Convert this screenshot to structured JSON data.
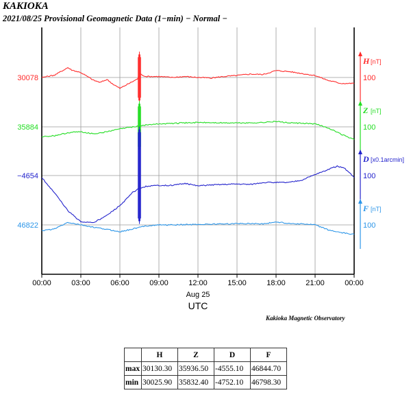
{
  "header": {
    "station": "KAKIOKA",
    "subtitle": "2021/08/25  Provisional Geomagnetic Data (1−min)  − Normal −"
  },
  "footer": {
    "observatory": "Kakioka Magnetic Observatory"
  },
  "colors": {
    "H": "#ff2a2a",
    "Z": "#22dd22",
    "D": "#2222cc",
    "F": "#2b95e8"
  },
  "chart_data": {
    "type": "line",
    "x_ticks": [
      "00:00",
      "03:00",
      "06:00",
      "09:00",
      "12:00",
      "15:00",
      "18:00",
      "21:00",
      "00:00"
    ],
    "x_date_label": "Aug 25",
    "xlabel": "UTC",
    "x_range_hours": [
      0,
      24
    ],
    "grid": true,
    "series": [
      {
        "name": "H",
        "unit": "[nT]",
        "base_label": "30078",
        "scale_label": "100",
        "scale_per_division": 100,
        "points": [
          [
            0,
            30078
          ],
          [
            1,
            30083
          ],
          [
            2,
            30098
          ],
          [
            2.3,
            30093
          ],
          [
            3,
            30088
          ],
          [
            3.5,
            30080
          ],
          [
            4,
            30072
          ],
          [
            4.5,
            30068
          ],
          [
            5,
            30074
          ],
          [
            5.5,
            30064
          ],
          [
            6,
            30056
          ],
          [
            6.5,
            30063
          ],
          [
            7,
            30070
          ],
          [
            7.35,
            30075
          ],
          [
            7.55,
            30085
          ],
          [
            8,
            30080
          ],
          [
            9,
            30080
          ],
          [
            10,
            30078
          ],
          [
            11,
            30080
          ],
          [
            12,
            30078
          ],
          [
            13,
            30077
          ],
          [
            14,
            30080
          ],
          [
            15,
            30082
          ],
          [
            16,
            30085
          ],
          [
            17,
            30084
          ],
          [
            18,
            30092
          ],
          [
            19,
            30090
          ],
          [
            20,
            30086
          ],
          [
            21,
            30082
          ],
          [
            22,
            30072
          ],
          [
            23,
            30066
          ],
          [
            24,
            30066
          ]
        ],
        "spike": {
          "t": 7.5,
          "low": 30025.9,
          "high": 30130.3
        }
      },
      {
        "name": "Z",
        "unit": "[nT]",
        "base_label": "35884",
        "scale_label": "100",
        "scale_per_division": 100,
        "points": [
          [
            0,
            35864
          ],
          [
            1,
            35866
          ],
          [
            2,
            35872
          ],
          [
            3,
            35874
          ],
          [
            4,
            35870
          ],
          [
            5,
            35874
          ],
          [
            6,
            35880
          ],
          [
            7,
            35884
          ],
          [
            8,
            35888
          ],
          [
            9,
            35890
          ],
          [
            10,
            35891
          ],
          [
            12,
            35893
          ],
          [
            14,
            35892
          ],
          [
            16,
            35892
          ],
          [
            17,
            35893
          ],
          [
            18,
            35895
          ],
          [
            19,
            35892
          ],
          [
            20,
            35891
          ],
          [
            21,
            35890
          ],
          [
            22,
            35882
          ],
          [
            23,
            35869
          ],
          [
            24,
            35858
          ]
        ],
        "spike": {
          "t": 7.5,
          "low": 35832.4,
          "high": 35936.5
        }
      },
      {
        "name": "D",
        "unit": "[x0.1arcmin]",
        "base_label": "−4654",
        "scale_label": "100",
        "scale_per_division": 100,
        "points": [
          [
            0,
            -4658
          ],
          [
            1,
            -4690
          ],
          [
            2,
            -4725
          ],
          [
            3,
            -4748
          ],
          [
            4,
            -4749
          ],
          [
            5,
            -4735
          ],
          [
            6,
            -4715
          ],
          [
            6.5,
            -4702
          ],
          [
            7,
            -4688
          ],
          [
            7.5,
            -4680
          ],
          [
            8,
            -4676
          ],
          [
            9,
            -4674
          ],
          [
            10,
            -4674
          ],
          [
            11,
            -4670
          ],
          [
            12,
            -4675
          ],
          [
            13,
            -4673
          ],
          [
            14,
            -4672
          ],
          [
            15,
            -4671
          ],
          [
            16,
            -4672
          ],
          [
            17,
            -4668
          ],
          [
            18,
            -4668
          ],
          [
            19,
            -4668
          ],
          [
            20,
            -4663
          ],
          [
            21,
            -4652
          ],
          [
            22,
            -4642
          ],
          [
            22.7,
            -4635
          ],
          [
            23.3,
            -4640
          ],
          [
            24,
            -4658
          ]
        ],
        "spike": {
          "t": 7.5,
          "low": -4752.1,
          "high": -4555.1
        }
      },
      {
        "name": "F",
        "unit": "[nT]",
        "base_label": "46822",
        "scale_label": "100",
        "scale_per_division": 100,
        "points": [
          [
            0,
            46810
          ],
          [
            1,
            46814
          ],
          [
            2,
            46827
          ],
          [
            3,
            46822
          ],
          [
            4,
            46817
          ],
          [
            5,
            46813
          ],
          [
            6,
            46808
          ],
          [
            7,
            46814
          ],
          [
            8,
            46820
          ],
          [
            9,
            46822
          ],
          [
            10,
            46822
          ],
          [
            12,
            46823
          ],
          [
            14,
            46824
          ],
          [
            16,
            46825
          ],
          [
            17,
            46824
          ],
          [
            18,
            46828
          ],
          [
            19,
            46825
          ],
          [
            20,
            46824
          ],
          [
            21,
            46822
          ],
          [
            22,
            46812
          ],
          [
            23,
            46806
          ],
          [
            24,
            46803
          ]
        ]
      }
    ]
  },
  "stats_table": {
    "headers": [
      "",
      "H",
      "Z",
      "D",
      "F"
    ],
    "rows": [
      {
        "label": "max",
        "values": [
          "30130.30",
          "35936.50",
          "-4555.10",
          "46844.70"
        ]
      },
      {
        "label": "min",
        "values": [
          "30025.90",
          "35832.40",
          "-4752.10",
          "46798.30"
        ]
      }
    ]
  }
}
